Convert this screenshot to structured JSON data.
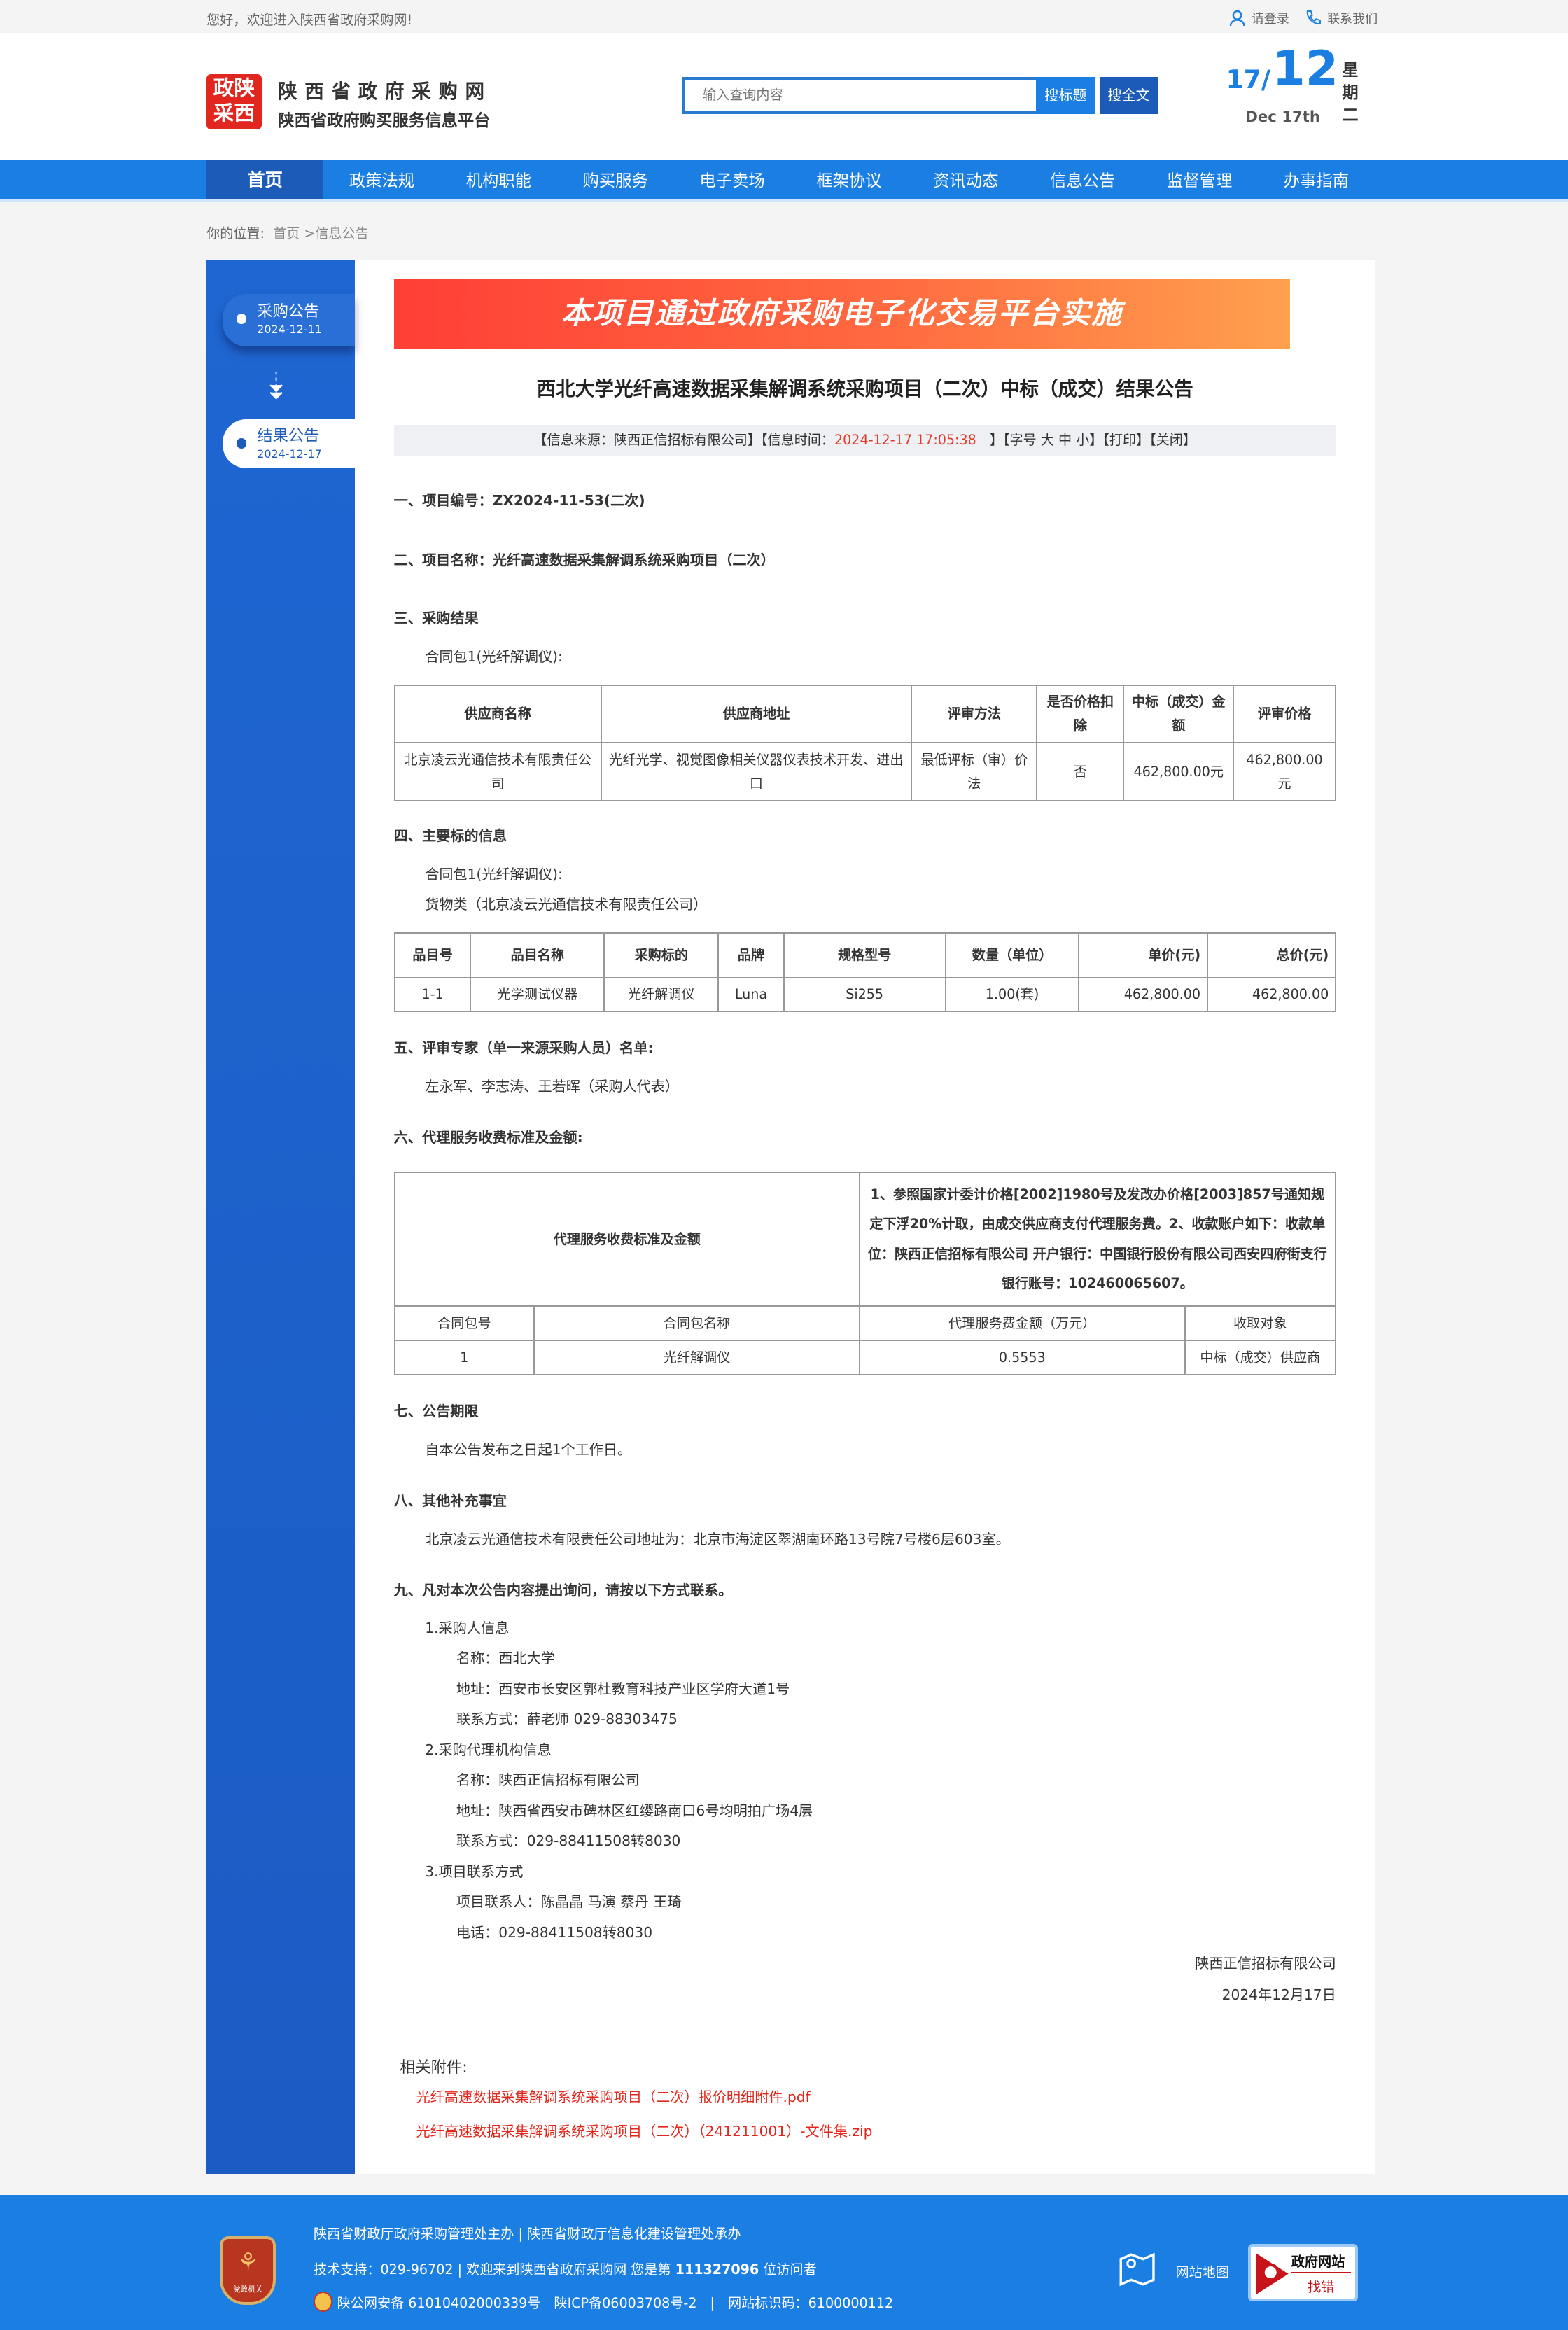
{
  "topbar": {
    "welcome": "您好，欢迎进入陕西省政府采购网!",
    "login": "请登录",
    "contact": "联系我们"
  },
  "header": {
    "logo_text": "政陕采西",
    "site_title": "陕西省政府采购网",
    "site_subtitle": "陕西省政府购买服务信息平台",
    "search_placeholder": "输入查询内容",
    "search_title_btn": "搜标题",
    "search_full_btn": "搜全文",
    "date_day": "17/",
    "date_month": "12",
    "date_en": "Dec 17th",
    "weekday": "星期二"
  },
  "nav": [
    "首页",
    "政策法规",
    "机构职能",
    "购买服务",
    "电子卖场",
    "框架协议",
    "资讯动态",
    "信息公告",
    "监督管理",
    "办事指南"
  ],
  "breadcrumb": {
    "label": "你的位置:",
    "home": "首页",
    "sep": " >",
    "current": "信息公告"
  },
  "sidebar": [
    {
      "label": "采购公告",
      "date": "2024-12-11"
    },
    {
      "label": "结果公告",
      "date": "2024-12-17"
    }
  ],
  "banner": "本项目通过政府采购电子化交易平台实施",
  "article": {
    "title": "西北大学光纤高速数据采集解调系统采购项目（二次）中标（成交）结果公告",
    "meta": {
      "source": "【信息来源：陕西正信招标有限公司】【信息时间：",
      "time": "2024-12-17 17:05:38",
      "size": "　】【字号 大 中 小】",
      "print": "【打印】",
      "close": "【关闭】"
    },
    "s1": "一、项目编号：ZX2024-11-53(二次)",
    "s2": "二、项目名称：光纤高速数据采集解调系统采购项目（二次）",
    "s3": "三、采购结果",
    "pkg": "合同包1(光纤解调仪):",
    "t1": {
      "headers": [
        "供应商名称",
        "供应商地址",
        "评审方法",
        "是否价格扣除",
        "中标（成交）金额",
        "评审价格"
      ],
      "row": [
        "北京凌云光通信技术有限责任公司",
        "光纤光学、视觉图像相关仪器仪表技术开发、进出口",
        "最低评标（审）价法",
        "否",
        "462,800.00元",
        "462,800.00元"
      ]
    },
    "s4": "四、主要标的信息",
    "goods": "货物类（北京凌云光通信技术有限责任公司）",
    "t2": {
      "headers": [
        "品目号",
        "品目名称",
        "采购标的",
        "品牌",
        "规格型号",
        "数量（单位）",
        "单价(元)",
        "总价(元)"
      ],
      "row": [
        "1-1",
        "光学测试仪器",
        "光纤解调仪",
        "Luna",
        "Si255",
        "1.00(套)",
        "462,800.00",
        "462,800.00"
      ]
    },
    "s5": "五、评审专家（单一来源采购人员）名单:",
    "experts": "左永军、李志涛、王若晖（采购人代表）",
    "s6": "六、代理服务收费标准及金额:",
    "t3": {
      "label": "代理服务收费标准及金额",
      "desc": "1、参照国家计委计价格[2002]1980号及发改办价格[2003]857号通知规定下浮20%计取，由成交供应商支付代理服务费。2、收款账户如下：收款单位：陕西正信招标有限公司 开户银行：中国银行股份有限公司西安四府街支行 银行账号：102460065607。",
      "headers": [
        "合同包号",
        "合同包名称",
        "代理服务费金额（万元）",
        "收取对象"
      ],
      "row": [
        "1",
        "光纤解调仪",
        "0.5553",
        "中标（成交）供应商"
      ]
    },
    "s7": "七、公告期限",
    "period": "自本公告发布之日起1个工作日。",
    "s8": "八、其他补充事宜",
    "other": "北京凌云光通信技术有限责任公司地址为：北京市海淀区翠湖南环路13号院7号楼6层603室。",
    "s9": "九、凡对本次公告内容提出询问，请按以下方式联系。",
    "c1": "1.采购人信息",
    "c1_name": "名称：西北大学",
    "c1_addr": "地址：西安市长安区郭杜教育科技产业区学府大道1号",
    "c1_tel": "联系方式：薛老师 029-88303475",
    "c2": "2.采购代理机构信息",
    "c2_name": "名称：陕西正信招标有限公司",
    "c2_addr": "地址：陕西省西安市碑林区红缨路南口6号均明拍广场4层",
    "c2_tel": "联系方式：029-88411508转8030",
    "c3": "3.项目联系方式",
    "c3_person": "项目联系人：陈晶晶 马演 蔡丹 王琦",
    "c3_tel": "电话：029-88411508转8030",
    "sign_org": "陕西正信招标有限公司",
    "sign_date": "2024年12月17日",
    "attach_label": "相关附件:",
    "attachments": [
      "光纤高速数据采集解调系统采购项目（二次）报价明细附件.pdf",
      "光纤高速数据采集解调系统采购项目（二次）（241211001）-文件集.zip"
    ]
  },
  "footer": {
    "line1": "陕西省财政厅政府采购管理处主办 | 陕西省财政厅信息化建设管理处承办",
    "line2a": "技术支持：029-96702 | 欢迎来到陕西省政府采购网 您是第 ",
    "visitors": "111327096",
    "line2b": " 位访问者",
    "line3": "陕公网安备 61010402000339号　陕ICP备06003708号-2　|　网站标识码：6100000112",
    "sitemap": "网站地图",
    "badge_top": "政府网站",
    "badge_bottom": "找错",
    "emblem_text": "党政机关"
  },
  "colors": {
    "brand_blue": "#1a7ee2",
    "dark_blue": "#1c5cb8",
    "accent_red": "#e2261b"
  }
}
